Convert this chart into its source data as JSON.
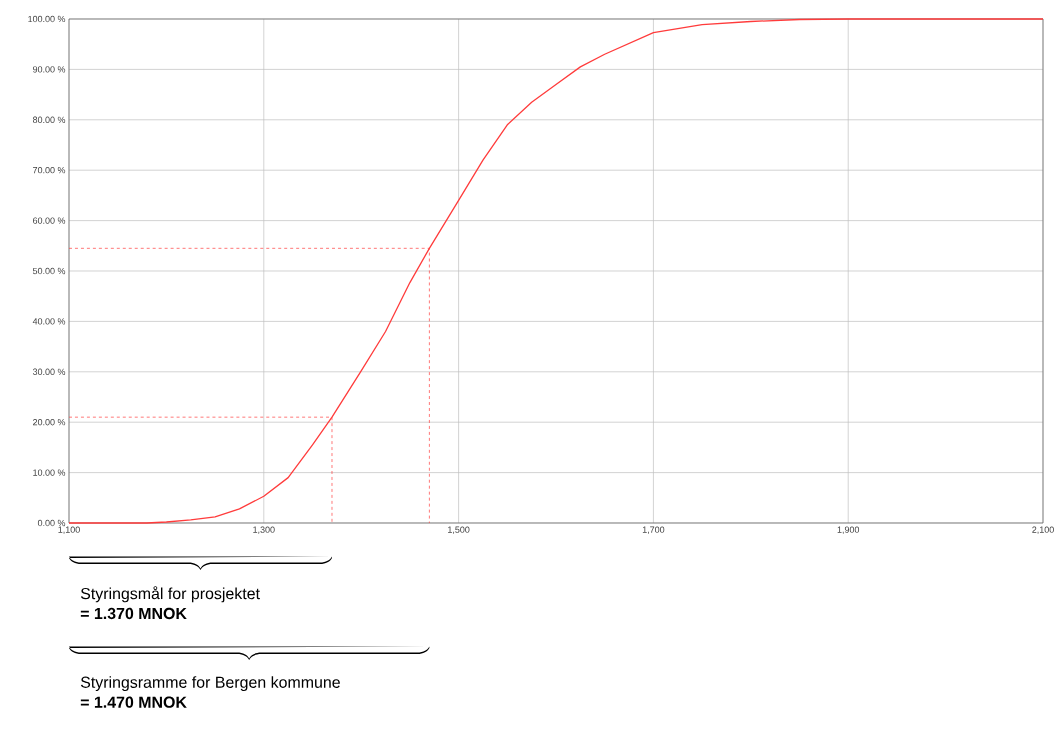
{
  "chart_data": {
    "type": "line",
    "x": [
      1100,
      1180,
      1200,
      1225,
      1250,
      1275,
      1300,
      1325,
      1350,
      1370,
      1400,
      1425,
      1450,
      1470,
      1500,
      1525,
      1550,
      1575,
      1600,
      1625,
      1650,
      1700,
      1750,
      1800,
      1850,
      1900,
      2100
    ],
    "series": [
      {
        "color": "#ff3b3b",
        "values": [
          0,
          0,
          0.2,
          0.6,
          1.2,
          2.8,
          5.3,
          9.0,
          15.5,
          21,
          30.2,
          38,
          47.7,
          54.5,
          64,
          72,
          79,
          83.5,
          87,
          90.5,
          93,
          97.3,
          98.9,
          99.5,
          99.9,
          100,
          100
        ]
      },
      {
        "color": "#ff3b3b",
        "line_style": "dashed",
        "x": [
          1100,
          1370,
          1370
        ],
        "values": [
          21,
          21,
          0
        ]
      },
      {
        "color": "#ff3b3b",
        "line_style": "dashed",
        "x": [
          1100,
          1470,
          1470
        ],
        "values": [
          54.5,
          54.5,
          0
        ]
      }
    ],
    "xlim": [
      1100,
      2100
    ],
    "ylim": [
      0,
      100
    ],
    "xticks": [
      {
        "value": 1100,
        "label": "1,100"
      },
      {
        "value": 1300,
        "label": "1,300"
      },
      {
        "value": 1500,
        "label": "1,500"
      },
      {
        "value": 1700,
        "label": "1,700"
      },
      {
        "value": 1900,
        "label": "1,900"
      },
      {
        "value": 2100,
        "label": "2,100"
      }
    ],
    "yticks": [
      {
        "value": 0,
        "label": "0.00 %"
      },
      {
        "value": 10,
        "label": "10.00 %"
      },
      {
        "value": 20,
        "label": "20.00 %"
      },
      {
        "value": 30,
        "label": "30.00 %"
      },
      {
        "value": 40,
        "label": "40.00 %"
      },
      {
        "value": 50,
        "label": "50.00 %"
      },
      {
        "value": 60,
        "label": "60.00 %"
      },
      {
        "value": 70,
        "label": "70.00 %"
      },
      {
        "value": 80,
        "label": "80.00 %"
      },
      {
        "value": 90,
        "label": "90.00 %"
      },
      {
        "value": 100,
        "label": "100.00 %"
      }
    ],
    "grid": true,
    "marker": "none",
    "line_style": "solid",
    "annotations": [
      "Styringsmål for prosjektet",
      "**= 1.370 MNOK**",
      "Styringsramme for Bergen kommune",
      "**= 1.470 MNOK**"
    ]
  }
}
